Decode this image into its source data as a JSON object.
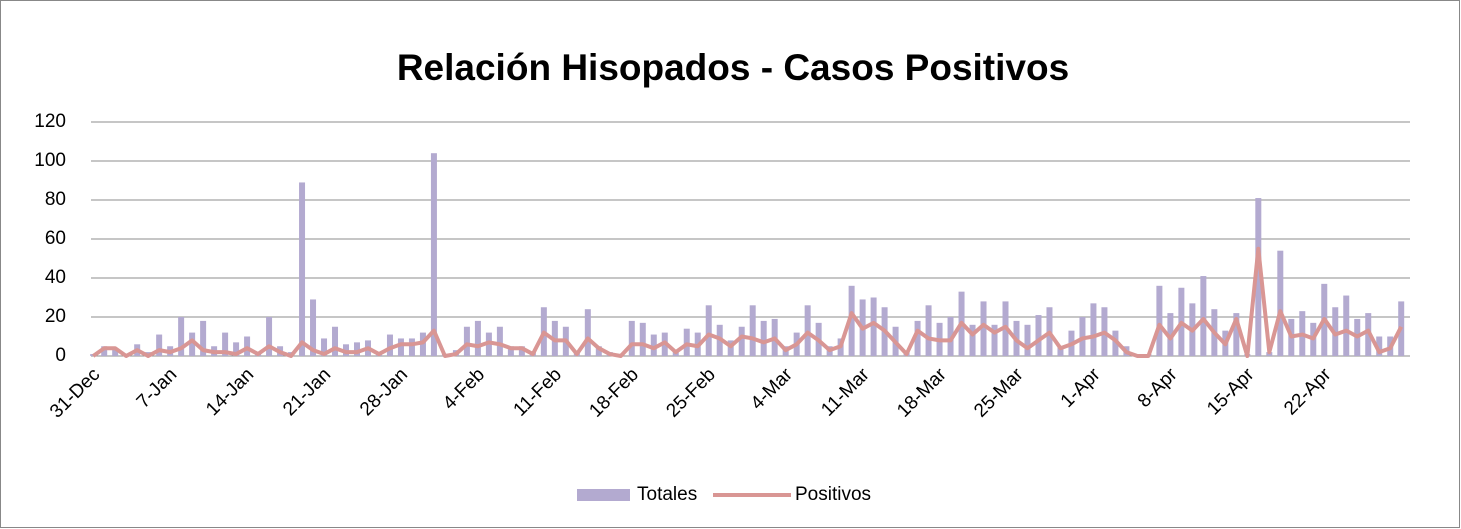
{
  "chart_data": {
    "type": "bar",
    "title": "Relación Hisopados - Casos Positivos",
    "categories": [
      "31-Dec",
      null,
      null,
      null,
      null,
      null,
      null,
      "7-Jan",
      null,
      null,
      null,
      null,
      null,
      null,
      "14-Jan",
      null,
      null,
      null,
      null,
      null,
      null,
      "21-Jan",
      null,
      null,
      null,
      null,
      null,
      null,
      "28-Jan",
      null,
      null,
      null,
      null,
      null,
      null,
      "4-Feb",
      null,
      null,
      null,
      null,
      null,
      null,
      "11-Feb",
      null,
      null,
      null,
      null,
      null,
      null,
      "18-Feb",
      null,
      null,
      null,
      null,
      null,
      null,
      "25-Feb",
      null,
      null,
      null,
      null,
      null,
      null,
      "4-Mar",
      null,
      null,
      null,
      null,
      null,
      null,
      "11-Mar",
      null,
      null,
      null,
      null,
      null,
      null,
      "18-Mar",
      null,
      null,
      null,
      null,
      null,
      null,
      "25-Mar",
      null,
      null,
      null,
      null,
      null,
      null,
      "1-Apr",
      null,
      null,
      null,
      null,
      null,
      null,
      "8-Apr",
      null,
      null,
      null,
      null,
      null,
      null,
      "15-Apr",
      null,
      null,
      null,
      null,
      null,
      null,
      "22-Apr",
      null,
      null,
      null,
      null,
      null,
      null,
      null
    ],
    "series": [
      {
        "name": "Totales",
        "type": "bar",
        "color": "#b3aad0",
        "values": [
          1,
          5,
          4,
          1,
          6,
          2,
          11,
          5,
          20,
          12,
          18,
          5,
          12,
          7,
          10,
          2,
          20,
          5,
          2,
          89,
          29,
          9,
          15,
          6,
          7,
          8,
          2,
          11,
          9,
          9,
          12,
          104,
          1,
          3,
          15,
          18,
          12,
          15,
          5,
          5,
          2,
          25,
          18,
          15,
          2,
          24,
          5,
          2,
          1,
          18,
          17,
          11,
          12,
          3,
          14,
          12,
          26,
          16,
          8,
          15,
          26,
          18,
          19,
          5,
          12,
          26,
          17,
          5,
          9,
          36,
          29,
          30,
          25,
          15,
          2,
          18,
          26,
          17,
          20,
          33,
          16,
          28,
          16,
          28,
          18,
          16,
          21,
          25,
          5,
          13,
          20,
          27,
          25,
          13,
          5,
          1,
          1,
          36,
          22,
          35,
          27,
          41,
          24,
          13,
          22,
          1,
          81,
          2,
          54,
          19,
          23,
          17,
          37,
          25,
          31,
          19,
          22,
          10,
          10,
          28
        ]
      },
      {
        "name": "Positivos",
        "type": "line",
        "color": "#d99694",
        "values": [
          0,
          4,
          4,
          0,
          3,
          0,
          3,
          2,
          4,
          8,
          3,
          2,
          2,
          1,
          4,
          1,
          5,
          2,
          0,
          7,
          3,
          1,
          4,
          2,
          2,
          4,
          1,
          4,
          6,
          6,
          7,
          13,
          0,
          1,
          6,
          5,
          7,
          6,
          4,
          4,
          1,
          12,
          8,
          8,
          1,
          9,
          4,
          1,
          0,
          6,
          6,
          4,
          7,
          2,
          6,
          5,
          11,
          9,
          5,
          10,
          9,
          7,
          9,
          3,
          6,
          12,
          8,
          3,
          5,
          22,
          14,
          17,
          13,
          7,
          1,
          13,
          9,
          8,
          8,
          17,
          11,
          16,
          12,
          15,
          8,
          4,
          8,
          12,
          4,
          6,
          9,
          10,
          12,
          8,
          2,
          0,
          0,
          16,
          9,
          17,
          13,
          19,
          12,
          6,
          19,
          0,
          55,
          2,
          23,
          10,
          11,
          9,
          19,
          11,
          13,
          10,
          13,
          2,
          4,
          15
        ]
      }
    ],
    "ylim": [
      0,
      120
    ],
    "yticks": [
      0,
      20,
      40,
      60,
      80,
      100,
      120
    ],
    "grid": true,
    "legend": "bottom"
  }
}
